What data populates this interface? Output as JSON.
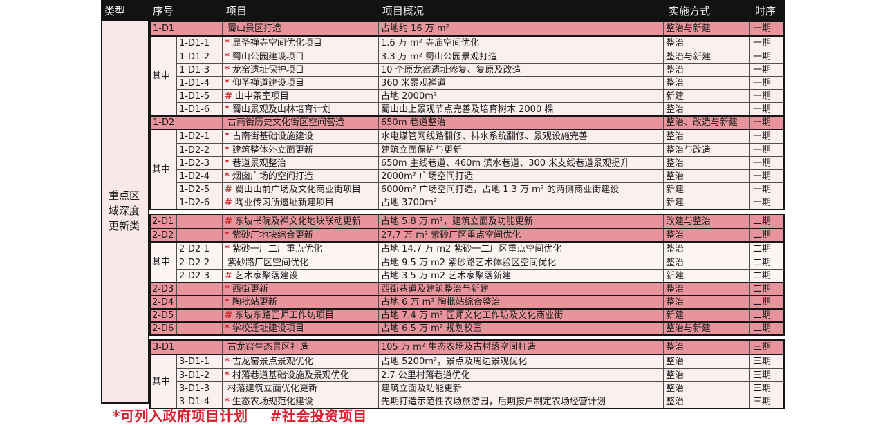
{
  "table": {
    "columns": [
      "类型",
      "序号",
      "项目",
      "项目概况",
      "实施方式",
      "时序"
    ],
    "type_label": "重点区域深度更新类",
    "subgroup_label": "其中",
    "colors": {
      "header_bg": "#121212",
      "main_row_pink": "#e8949c",
      "type_cell_bg": "#f9e8e8",
      "marker_red": "#cf2128",
      "legend_red": "#d71f2e"
    },
    "sections": [
      {
        "id": "phase-1",
        "row_color": "#fcefef",
        "blocks": [
          {
            "type": "main",
            "split": false,
            "no": "1-D1",
            "marker": "",
            "project": "蜀山景区打造",
            "overview": "占地约 16 万 m²",
            "method": "整治与新建",
            "phase": "一期"
          },
          {
            "type": "group",
            "label": "其中",
            "rows": [
              {
                "no": "1-D1-1",
                "marker": "*",
                "project": "显圣禅寺空间优化项目",
                "overview": "1.6 万 m² 寺庙空间优化",
                "method": "整治",
                "phase": "一期"
              },
              {
                "no": "1-D1-2",
                "marker": "*",
                "project": "蜀山公园建设项目",
                "overview": "3.3 万 m² 蜀山公园景观打造",
                "method": "整治与新建",
                "phase": "一期"
              },
              {
                "no": "1-D1-3",
                "marker": "*",
                "project": "龙窑遗址保护项目",
                "overview": "10 个原龙窑遗址修复、复原及改造",
                "method": "整治",
                "phase": "一期"
              },
              {
                "no": "1-D1-4",
                "marker": "*",
                "project": "仰圣禅道建设项目",
                "overview": "360 米景观禅道",
                "method": "整治",
                "phase": "一期"
              },
              {
                "no": "1-D1-5",
                "marker": "#",
                "project": "山中茶室项目",
                "overview": "占地 2000m²",
                "method": "新建",
                "phase": "一期"
              },
              {
                "no": "1-D1-6",
                "marker": "*",
                "project": "蜀山景观及山林培育计划",
                "overview": "蜀山山上景观节点完善及培育树木 2000 棵",
                "method": "整治",
                "phase": "一期"
              }
            ]
          },
          {
            "type": "main",
            "split": false,
            "no": "1-D2",
            "marker": "",
            "project": "古南街历史文化街区空间营造",
            "overview": "650m 巷道整治",
            "method": "整治、改造与新建",
            "phase": "一期"
          },
          {
            "type": "group",
            "label": "其中",
            "rows": [
              {
                "no": "1-D2-1",
                "marker": "*",
                "project": "古南街基础设施建设",
                "overview": "水电煤管网线路翻修、排水系统翻修、景观设施完善",
                "method": "整治",
                "phase": "一期"
              },
              {
                "no": "1-D2-2",
                "marker": "*",
                "project": "建筑整体外立面更新",
                "overview": "建筑立面保护与更新",
                "method": "整治与改造",
                "phase": "一期"
              },
              {
                "no": "1-D2-3",
                "marker": "*",
                "project": "巷道景观整治",
                "overview": "650m 主线巷道、460m 滨水巷道、300 米支线巷道景观提升",
                "method": "整治",
                "phase": "一期"
              },
              {
                "no": "1-D2-4",
                "marker": "*",
                "project": "烟囱广场的空间打造",
                "overview": "2000m² 广场空间打造",
                "method": "整治",
                "phase": "一期"
              },
              {
                "no": "1-D2-5",
                "marker": "#",
                "project": "蜀山山前广场及文化商业街项目",
                "overview": "6000m² 广场空间打造，占地 1.3 万 m² 的两侧商业街建设",
                "method": "新建",
                "phase": "一期"
              },
              {
                "no": "1-D2-6",
                "marker": "#",
                "project": "陶业传习所遗址新建项目",
                "overview": "占地 3700m²",
                "method": "新建",
                "phase": "一期"
              }
            ]
          }
        ]
      },
      {
        "id": "phase-2",
        "row_color": "#fdf4f4",
        "blocks": [
          {
            "type": "main",
            "split": true,
            "no": "2-D1",
            "marker": "#",
            "project": "东坡书院及禅文化地块联动更新",
            "overview": "占地 5.8 万 m²，建筑立面及功能更新",
            "method": "改建与整治",
            "phase": "二期"
          },
          {
            "type": "main",
            "split": true,
            "no": "2-D2",
            "marker": "*",
            "project": "紫砂厂地块综合更新",
            "overview": "27.7 万 m² 紫砂厂区重点空间优化",
            "method": "整治",
            "phase": "二期"
          },
          {
            "type": "group",
            "label": "其中",
            "rows": [
              {
                "no": "2-D2-1",
                "marker": "*",
                "project": "紫砂一厂二厂重点优化",
                "overview": "占地 14.7 万 m2 紫砂一二厂区重点空间优化",
                "method": "整治",
                "phase": "二期"
              },
              {
                "no": "2-D2-2",
                "marker": "",
                "project": "紫砂路厂区空间优化",
                "overview": "占地 9.5 万 m2 紫砂路艺术体验区空间优化",
                "method": "整治",
                "phase": "二期"
              },
              {
                "no": "2-D2-3",
                "marker": "#",
                "project": "艺术家聚落建设",
                "overview": "占地 3.5 万 m2 艺术家聚落新建",
                "method": "新建",
                "phase": "二期"
              }
            ]
          },
          {
            "type": "main",
            "split": true,
            "no": "2-D3",
            "marker": "*",
            "project": "西街更新",
            "overview": "西街巷道及建筑整治与新建",
            "method": "整治",
            "phase": "二期"
          },
          {
            "type": "main",
            "split": true,
            "no": "2-D4",
            "marker": "*",
            "project": "陶批站更新",
            "overview": "占地 6 万 m² 陶批站综合整治",
            "method": "整治",
            "phase": "二期"
          },
          {
            "type": "main",
            "split": true,
            "no": "2-D5",
            "marker": "#",
            "project": "东坡东路匠师工作坊项目",
            "overview": "占地 7.4 万 m² 匠师文化工作坊及文化商业街",
            "method": "新建",
            "phase": "二期"
          },
          {
            "type": "main",
            "split": true,
            "no": "2-D6",
            "marker": "*",
            "project": "学校迁址建设项目",
            "overview": "占地 6.5 万 m² 规划校园",
            "method": "整治与新建",
            "phase": "二期"
          }
        ]
      },
      {
        "id": "phase-3",
        "row_color": "#fcefef",
        "blocks": [
          {
            "type": "main",
            "split": false,
            "no": "3-D1",
            "marker": "",
            "project": "古龙窑生态景区打造",
            "overview": "105 万 m² 生态农场及古村落空间打造",
            "method": "整治",
            "phase": "三期"
          },
          {
            "type": "group",
            "label": "其中",
            "rows": [
              {
                "no": "3-D1-1",
                "marker": "*",
                "project": "古龙窑景点景观优化",
                "overview": "占地 5200m²，景点及周边景观优化",
                "method": "整治",
                "phase": "三期"
              },
              {
                "no": "3-D1-2",
                "marker": "*",
                "project": "村落巷道基础设施及景观优化",
                "overview": "2.7 公里村落巷道优化",
                "method": "整治",
                "phase": "三期"
              },
              {
                "no": "3-D1-3",
                "marker": "",
                "project": "村落建筑立面优化更新",
                "overview": "建筑立面及功能更新",
                "method": "整治",
                "phase": "三期"
              },
              {
                "no": "3-D1-4",
                "marker": "*",
                "project": "生态农场规范化建设",
                "overview": "先期打造示范性农场旅游园，后期按户制定农场经营计划",
                "method": "整治",
                "phase": "三期"
              }
            ]
          }
        ]
      }
    ]
  },
  "legend": {
    "item1": "*可列入政府项目计划",
    "item2": "#社会投资项目"
  }
}
